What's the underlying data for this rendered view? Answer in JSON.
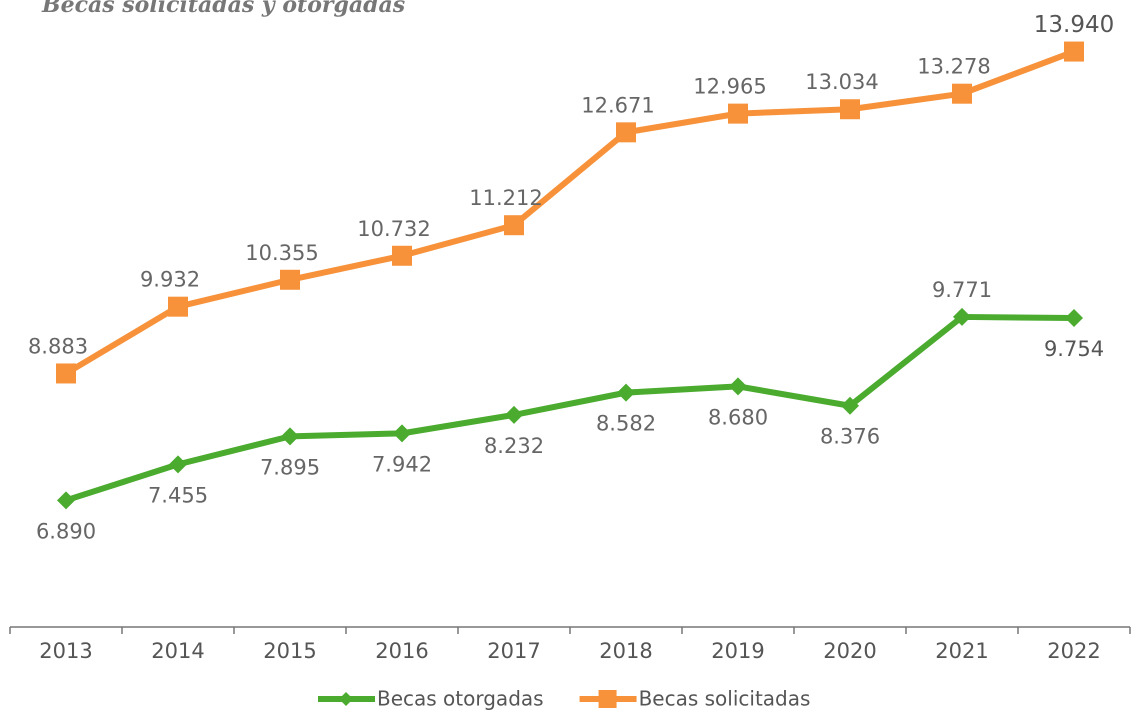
{
  "chart_data": {
    "type": "line",
    "title": "Becas solicitadas y otorgadas",
    "categories": [
      "2013",
      "2014",
      "2015",
      "2016",
      "2017",
      "2018",
      "2019",
      "2020",
      "2021",
      "2022"
    ],
    "series": [
      {
        "name": "Becas otorgadas",
        "color": "#4aab2e",
        "marker": "diamond",
        "values": [
          6890,
          7455,
          7895,
          7942,
          8232,
          8582,
          8680,
          8376,
          9771,
          9754
        ],
        "value_labels": [
          "6.890",
          "7.455",
          "7.895",
          "7.942",
          "8.232",
          "8.582",
          "8.680",
          "8.376",
          "9.771",
          "9.754"
        ]
      },
      {
        "name": "Becas solicitadas",
        "color": "#f7923a",
        "marker": "square",
        "values": [
          8883,
          9932,
          10355,
          10732,
          11212,
          12671,
          12965,
          13034,
          13278,
          13940
        ],
        "value_labels": [
          "8.883",
          "9.932",
          "10.355",
          "10.732",
          "11.212",
          "12.671",
          "12.965",
          "13.034",
          "13.278",
          "13.940"
        ]
      }
    ],
    "ylim": [
      4900,
      14750
    ],
    "legend": "bottom"
  }
}
